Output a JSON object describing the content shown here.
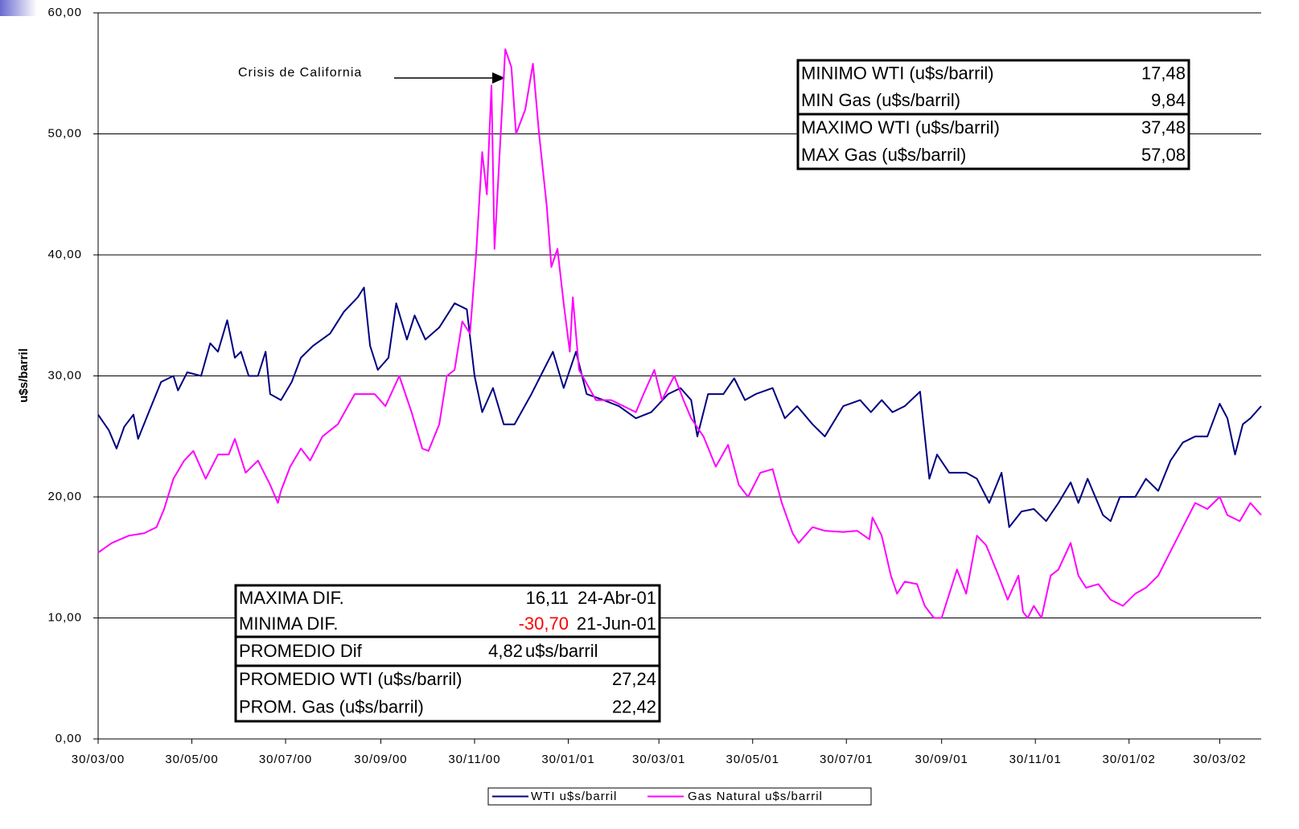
{
  "chart_data": {
    "type": "line",
    "ylabel": "u$s/barril",
    "xlim": [
      "30/03/00",
      "26/04/02"
    ],
    "xticks": [
      "30/03/00",
      "30/05/00",
      "30/07/00",
      "30/09/00",
      "30/11/00",
      "30/01/01",
      "30/03/01",
      "30/05/01",
      "30/07/01",
      "30/09/01",
      "30/11/01",
      "30/01/02",
      "30/03/02"
    ],
    "ylim": [
      0,
      60
    ],
    "yticks": [
      {
        "value": 0,
        "label": "0,00"
      },
      {
        "value": 10,
        "label": "10,00"
      },
      {
        "value": 20,
        "label": "20,00"
      },
      {
        "value": 30,
        "label": "30,00"
      },
      {
        "value": 40,
        "label": "40,00"
      },
      {
        "value": 50,
        "label": "50,00"
      },
      {
        "value": 60,
        "label": "60,00"
      }
    ],
    "grid": true,
    "legend": "bottom",
    "annotation": "Crisis de California",
    "negative_color": "#ff0000",
    "stats_boxes": [
      {
        "rows": [
          [
            "MINIMO WTI (u$s/barril)",
            "17,48"
          ],
          [
            "MIN Gas (u$s/barril)",
            "9,84"
          ],
          [
            "MAXIMO WTI (u$s/barril)",
            "37,48"
          ],
          [
            "MAX Gas (u$s/barril)",
            "57,08"
          ]
        ]
      },
      {
        "rows": [
          [
            "MAXIMA DIF.",
            "16,11",
            "24-Abr-01"
          ],
          [
            "MINIMA DIF.",
            "-30,70",
            "21-Jun-01"
          ],
          [
            "PROMEDIO Dif",
            "4,82",
            "u$s/barril"
          ],
          [
            "PROMEDIO WTI (u$s/barril)",
            "27,24"
          ],
          [
            "PROM. Gas (u$s/barril)",
            "22,42"
          ]
        ]
      }
    ],
    "series": [
      {
        "name": "WTI u$s/barril",
        "color": "#000080",
        "x": [
          "30/03/00",
          "06/04/00",
          "11/04/00",
          "16/04/00",
          "22/04/00",
          "25/04/00",
          "02/05/00",
          "10/05/00",
          "18/05/00",
          "21/05/00",
          "27/05/00",
          "05/06/00",
          "11/06/00",
          "16/06/00",
          "22/06/00",
          "27/06/00",
          "01/07/00",
          "06/07/00",
          "12/07/00",
          "17/07/00",
          "20/07/00",
          "27/07/00",
          "03/08/00",
          "09/08/00",
          "17/08/00",
          "28/08/00",
          "06/09/00",
          "15/09/00",
          "19/09/00",
          "23/09/00",
          "28/09/00",
          "05/10/00",
          "10/10/00",
          "17/10/00",
          "22/10/00",
          "29/10/00",
          "07/11/00",
          "17/11/00",
          "25/11/00",
          "30/11/00",
          "05/12/00",
          "12/12/00",
          "19/12/00",
          "26/12/00",
          "06/01/01",
          "12/01/01",
          "20/01/01",
          "27/01/01",
          "04/02/01",
          "11/02/01",
          "22/02/01",
          "04/03/01",
          "15/03/01",
          "25/03/01",
          "05/04/01",
          "13/04/01",
          "20/04/01",
          "24/04/01",
          "01/05/01",
          "11/05/01",
          "18/05/01",
          "25/05/01",
          "01/06/01",
          "12/06/01",
          "20/06/01",
          "28/06/01",
          "08/07/01",
          "16/07/01",
          "28/07/01",
          "08/08/01",
          "15/08/01",
          "22/08/01",
          "29/08/01",
          "06/09/01",
          "16/09/01",
          "22/09/01",
          "27/09/01",
          "05/10/01",
          "16/10/01",
          "23/10/01",
          "31/10/01",
          "08/11/01",
          "13/11/01",
          "21/11/01",
          "29/11/01",
          "07/12/01",
          "15/12/01",
          "23/12/01",
          "28/12/01",
          "03/01/02",
          "13/01/02",
          "18/01/02",
          "24/01/02",
          "03/02/02",
          "10/02/02",
          "18/02/02",
          "26/02/02",
          "06/03/02",
          "14/03/02",
          "22/03/02",
          "30/03/02",
          "04/04/02",
          "09/04/02",
          "14/04/02",
          "19/04/02",
          "26/04/02"
        ],
        "values": [
          26.8,
          25.5,
          24,
          25.8,
          26.8,
          24.8,
          27,
          29.5,
          30,
          28.8,
          30.3,
          30,
          32.7,
          32,
          34.6,
          31.5,
          32,
          30,
          30,
          32,
          28.5,
          28,
          29.5,
          31.5,
          32.5,
          33.5,
          35.3,
          36.5,
          37.3,
          32.5,
          30.5,
          31.5,
          36,
          33,
          35,
          33,
          34,
          36,
          35.5,
          30,
          27,
          29,
          26,
          26,
          28.5,
          30,
          32,
          29,
          32,
          28.5,
          28,
          27.5,
          26.5,
          27,
          28.5,
          29,
          28,
          25,
          28.5,
          28.5,
          29.8,
          28,
          28.5,
          29,
          26.5,
          27.5,
          26,
          25,
          27.5,
          28,
          27,
          28,
          27,
          27.5,
          28.7,
          21.5,
          23.5,
          22,
          22,
          21.5,
          19.5,
          22,
          17.5,
          18.8,
          19,
          18,
          19.5,
          21.2,
          19.5,
          21.5,
          18.5,
          18,
          20,
          20,
          21.5,
          20.5,
          23,
          24.5,
          25,
          25,
          27.7,
          26.5,
          23.5,
          26,
          26.5,
          27.5
        ]
      },
      {
        "name": "Gas Natural u$s/barril",
        "color": "#ff00ff",
        "x": [
          "30/03/00",
          "08/04/00",
          "19/04/00",
          "29/04/00",
          "07/05/00",
          "12/05/00",
          "18/05/00",
          "25/05/00",
          "31/05/00",
          "08/06/00",
          "16/06/00",
          "23/06/00",
          "27/06/00",
          "04/07/00",
          "12/07/00",
          "20/07/00",
          "25/07/00",
          "27/07/00",
          "02/08/00",
          "09/08/00",
          "15/08/00",
          "23/08/00",
          "02/09/00",
          "13/09/00",
          "26/09/00",
          "03/10/00",
          "12/10/00",
          "20/10/00",
          "27/10/00",
          "31/10/00",
          "07/11/00",
          "12/11/00",
          "17/11/00",
          "22/11/00",
          "27/11/00",
          "01/12/00",
          "05/12/00",
          "08/12/00",
          "11/12/00",
          "13/12/00",
          "17/12/00",
          "20/12/00",
          "24/12/00",
          "27/12/00",
          "02/01/01",
          "07/01/01",
          "11/01/01",
          "16/01/01",
          "19/01/01",
          "23/01/01",
          "27/01/01",
          "31/01/01",
          "02/02/01",
          "06/02/01",
          "17/02/01",
          "27/02/01",
          "07/03/01",
          "15/03/01",
          "20/03/01",
          "27/03/01",
          "01/04/01",
          "09/04/01",
          "15/04/01",
          "20/04/01",
          "28/04/01",
          "06/05/01",
          "14/05/01",
          "21/05/01",
          "27/05/01",
          "04/06/01",
          "12/06/01",
          "18/06/01",
          "25/06/01",
          "29/06/01",
          "08/07/01",
          "16/07/01",
          "28/07/01",
          "06/08/01",
          "14/08/01",
          "16/08/01",
          "22/08/01",
          "28/08/01",
          "01/09/01",
          "06/09/01",
          "14/09/01",
          "19/09/01",
          "25/09/01",
          "30/09/01",
          "05/10/01",
          "10/10/01",
          "16/10/01",
          "23/10/01",
          "29/10/01",
          "06/11/01",
          "12/11/01",
          "19/11/01",
          "22/11/01",
          "25/11/01",
          "29/11/01",
          "04/12/01",
          "10/12/01",
          "15/12/01",
          "23/12/01",
          "28/12/01",
          "02/01/02",
          "10/01/02",
          "18/01/02",
          "26/01/02",
          "03/02/02",
          "10/02/02",
          "18/02/02",
          "26/02/02",
          "06/03/02",
          "14/03/02",
          "22/03/02",
          "30/03/02",
          "04/04/02",
          "12/04/02",
          "19/04/02",
          "26/04/02"
        ],
        "values": [
          15.4,
          16.2,
          16.8,
          17,
          17.5,
          19,
          21.5,
          23,
          23.8,
          21.5,
          23.5,
          23.5,
          24.8,
          22,
          23,
          21,
          19.5,
          20.5,
          22.5,
          24,
          23,
          25,
          26,
          28.5,
          28.5,
          27.5,
          30,
          27,
          24,
          23.8,
          26,
          30,
          30.5,
          34.5,
          33.5,
          40,
          48.5,
          45,
          54,
          40.5,
          50,
          57,
          55.5,
          50,
          52,
          55.8,
          50,
          44,
          39,
          40.5,
          36,
          32,
          36.5,
          30.5,
          28,
          28,
          27.5,
          27,
          28.5,
          30.5,
          28,
          30,
          28,
          26.5,
          25,
          22.5,
          24.3,
          21,
          20,
          22,
          22.3,
          19.5,
          17,
          16.2,
          17.5,
          17.2,
          17.1,
          17.2,
          16.5,
          18.3,
          16.8,
          13.5,
          12,
          13,
          12.8,
          11,
          10,
          10,
          12,
          14,
          12,
          16.8,
          16,
          13.5,
          11.5,
          13.5,
          10.5,
          10,
          11,
          10,
          13.5,
          14,
          16.2,
          13.5,
          12.5,
          12.8,
          11.5,
          11,
          12,
          12.5,
          13.5,
          15.5,
          17.5,
          19.5,
          19,
          20,
          18.5,
          18,
          19.5,
          18.5
        ]
      }
    ]
  }
}
